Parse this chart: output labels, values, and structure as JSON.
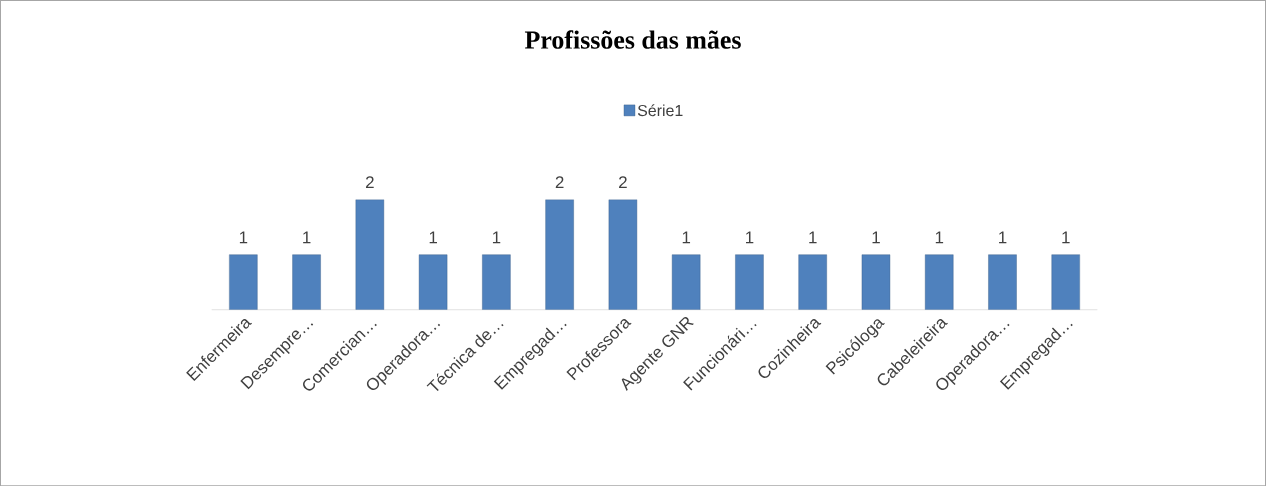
{
  "chart_data": {
    "type": "bar",
    "title": "Profissões das mães",
    "categories": [
      "Enfermeira",
      "Desempre…",
      "Comercian…",
      "Operadora…",
      "Técnica de…",
      "Empregad…",
      "Professora",
      "Agente GNR",
      "Funcionári…",
      "Cozinheira",
      "Psicóloga",
      "Cabeleireira",
      "Operadora…",
      "Empregad…"
    ],
    "series": [
      {
        "name": "Série1",
        "color": "#4f81bd",
        "values": [
          1,
          1,
          2,
          1,
          1,
          2,
          2,
          1,
          1,
          1,
          1,
          1,
          1,
          1
        ]
      }
    ],
    "data_labels": true,
    "legend": "top"
  }
}
